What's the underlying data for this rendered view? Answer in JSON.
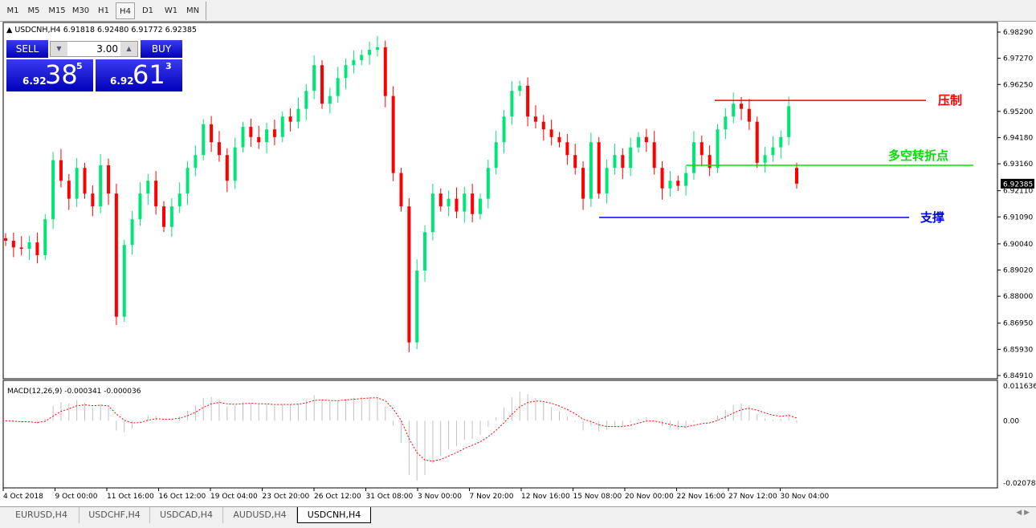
{
  "timeframes": [
    {
      "label": "M1"
    },
    {
      "label": "M5"
    },
    {
      "label": "M15"
    },
    {
      "label": "M30"
    },
    {
      "label": "H1"
    },
    {
      "label": "H4",
      "selected": true
    },
    {
      "label": "D1"
    },
    {
      "label": "W1"
    },
    {
      "label": "MN"
    }
  ],
  "chart": {
    "symbol_info": "USDCNH,H4  6.91818 6.92480 6.91772 6.92385",
    "current_price": "6.92385"
  },
  "trade_panel": {
    "sell_label": "SELL",
    "buy_label": "BUY",
    "volume": "3.00",
    "sell_prefix": "6.92",
    "sell_big": "38",
    "sell_sup": "5",
    "buy_prefix": "6.92",
    "buy_big": "61",
    "buy_sup": "3"
  },
  "price_axis": [
    "6.98290",
    "6.97270",
    "6.96250",
    "6.95200",
    "6.94180",
    "6.93160",
    "6.92110",
    "6.91090",
    "6.90040",
    "6.89020",
    "6.88000",
    "6.86950",
    "6.85930",
    "6.84910"
  ],
  "annotations": [
    {
      "label": "压制",
      "price": 6.9563,
      "color": "#ff0000"
    },
    {
      "label": "多空转折点",
      "price": 6.931,
      "color": "#00e000"
    },
    {
      "label": "支撑",
      "price": 6.9107,
      "color": "#0000ff"
    }
  ],
  "macd": {
    "label": "MACD(12,26,9) -0.000341 -0.000036",
    "axis": [
      "0.011636",
      "0.00",
      "-0.020788"
    ],
    "histogram_color": "#c0c0c0",
    "signal_color": "#ff0000"
  },
  "time_axis": [
    "4 Oct 2018",
    "9 Oct 00:00",
    "11 Oct 16:00",
    "16 Oct 12:00",
    "19 Oct 04:00",
    "23 Oct 20:00",
    "26 Oct 12:00",
    "31 Oct 08:00",
    "3 Nov 00:00",
    "7 Nov 20:00",
    "12 Nov 16:00",
    "15 Nov 08:00",
    "20 Nov 00:00",
    "22 Nov 16:00",
    "27 Nov 12:00",
    "30 Nov 04:00"
  ],
  "colors": {
    "bull": "#00e676",
    "bear": "#ff0000"
  },
  "closes": [
    6.9016,
    6.899,
    6.8985,
    6.901,
    6.896,
    6.91,
    6.933,
    6.925,
    6.918,
    6.93,
    6.92,
    6.915,
    6.931,
    6.92,
    6.872,
    6.9,
    6.91,
    6.92,
    6.925,
    6.915,
    6.907,
    6.915,
    6.92,
    6.93,
    6.935,
    6.947,
    6.94,
    6.935,
    6.925,
    6.938,
    6.946,
    6.942,
    6.94,
    6.945,
    6.942,
    6.95,
    6.948,
    6.953,
    6.96,
    6.97,
    6.955,
    6.958,
    6.965,
    6.97,
    6.972,
    6.974,
    6.976,
    6.977,
    6.958,
    6.928,
    6.915,
    6.862,
    6.89,
    6.905,
    6.92,
    6.915,
    6.918,
    6.913,
    6.92,
    6.912,
    6.918,
    6.93,
    6.94,
    6.95,
    6.96,
    6.962,
    6.95,
    6.948,
    6.945,
    6.942,
    6.94,
    6.935,
    6.93,
    6.918,
    6.94,
    6.92,
    6.93,
    6.935,
    6.93,
    6.938,
    6.942,
    6.94,
    6.93,
    6.922,
    6.925,
    6.923,
    6.928,
    6.94,
    6.935,
    6.93,
    6.945,
    6.95,
    6.955,
    6.953,
    6.948,
    6.932,
    6.935,
    6.938,
    6.942,
    6.954,
    6.92385
  ],
  "tabs": [
    {
      "label": "EURUSD,H4"
    },
    {
      "label": "USDCHF,H4"
    },
    {
      "label": "USDCAD,H4"
    },
    {
      "label": "AUDUSD,H4"
    },
    {
      "label": "USDCNH,H4",
      "selected": true
    }
  ]
}
